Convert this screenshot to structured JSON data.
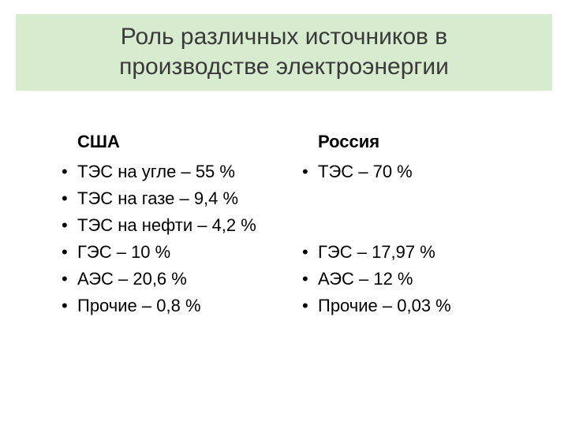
{
  "title": {
    "line1": "Роль различных источников в",
    "line2": "производстве электроэнергии",
    "background_color": "#d7ecce",
    "text_color": "#3a3a3a",
    "fontsize": 30
  },
  "body": {
    "text_color": "#000000",
    "fontsize": 22
  },
  "columns": [
    {
      "heading": "США",
      "items": [
        {
          "text": "ТЭС на угле – 55 %",
          "blank": false
        },
        {
          "text": "ТЭС на газе – 9,4 %",
          "blank": false
        },
        {
          "text": "ТЭС на нефти – 4,2 %",
          "blank": false
        },
        {
          "text": "ГЭС – 10 %",
          "blank": false
        },
        {
          "text": "АЭС – 20,6 %",
          "blank": false
        },
        {
          "text": "Прочие – 0,8 %",
          "blank": false
        }
      ]
    },
    {
      "heading": "Россия",
      "items": [
        {
          "text": "ТЭС – 70 %",
          "blank": false
        },
        {
          "text": "",
          "blank": true
        },
        {
          "text": "",
          "blank": true
        },
        {
          "text": "ГЭС – 17,97 %",
          "blank": false
        },
        {
          "text": "АЭС – 12 %",
          "blank": false
        },
        {
          "text": "Прочие – 0,03 %",
          "blank": false
        }
      ]
    }
  ]
}
